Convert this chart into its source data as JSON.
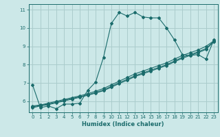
{
  "xlabel": "Humidex (Indice chaleur)",
  "xlim": [
    -0.5,
    23.5
  ],
  "ylim": [
    5.4,
    11.3
  ],
  "xticks": [
    0,
    1,
    2,
    3,
    4,
    5,
    6,
    7,
    8,
    9,
    10,
    11,
    12,
    13,
    14,
    15,
    16,
    17,
    18,
    19,
    20,
    21,
    22,
    23
  ],
  "yticks": [
    6,
    7,
    8,
    9,
    10,
    11
  ],
  "bg_color": "#cce8e8",
  "grid_color": "#aacccc",
  "line_color": "#1a6b6b",
  "line1_x": [
    0,
    1,
    2,
    3,
    4,
    5,
    6,
    7,
    8,
    9,
    10,
    11,
    12,
    13,
    14,
    15,
    16,
    17,
    18,
    19,
    20,
    21,
    22,
    23
  ],
  "line1_y": [
    6.9,
    5.65,
    5.75,
    5.6,
    5.85,
    5.85,
    5.9,
    6.6,
    7.05,
    8.4,
    10.25,
    10.85,
    10.65,
    10.85,
    10.6,
    10.55,
    10.55,
    10.0,
    9.35,
    8.55,
    8.5,
    8.55,
    8.3,
    9.35
  ],
  "line2_x": [
    0,
    1,
    2,
    3,
    4,
    5,
    6,
    7,
    8,
    9,
    10,
    11,
    12,
    13,
    14,
    15,
    16,
    17,
    18,
    19,
    20,
    21,
    22,
    23
  ],
  "line2_y": [
    5.75,
    5.8,
    5.9,
    6.0,
    6.1,
    6.2,
    6.3,
    6.42,
    6.55,
    6.7,
    6.9,
    7.1,
    7.3,
    7.5,
    7.65,
    7.8,
    7.95,
    8.1,
    8.3,
    8.5,
    8.65,
    8.8,
    9.0,
    9.3
  ],
  "line3_x": [
    0,
    1,
    2,
    3,
    4,
    5,
    6,
    7,
    8,
    9,
    10,
    11,
    12,
    13,
    14,
    15,
    16,
    17,
    18,
    19,
    20,
    21,
    22,
    23
  ],
  "line3_y": [
    5.7,
    5.78,
    5.85,
    5.95,
    6.05,
    6.15,
    6.25,
    6.36,
    6.48,
    6.62,
    6.82,
    7.02,
    7.2,
    7.4,
    7.55,
    7.7,
    7.85,
    8.0,
    8.2,
    8.4,
    8.55,
    8.7,
    8.88,
    9.28
  ],
  "line4_x": [
    0,
    1,
    2,
    3,
    4,
    5,
    6,
    7,
    8,
    9,
    10,
    11,
    12,
    13,
    14,
    15,
    16,
    17,
    18,
    19,
    20,
    21,
    22,
    23
  ],
  "line4_y": [
    5.65,
    5.75,
    5.82,
    5.92,
    6.02,
    6.12,
    6.22,
    6.33,
    6.45,
    6.58,
    6.77,
    6.97,
    7.15,
    7.35,
    7.5,
    7.65,
    7.8,
    7.95,
    8.15,
    8.35,
    8.5,
    8.65,
    8.83,
    9.25
  ]
}
